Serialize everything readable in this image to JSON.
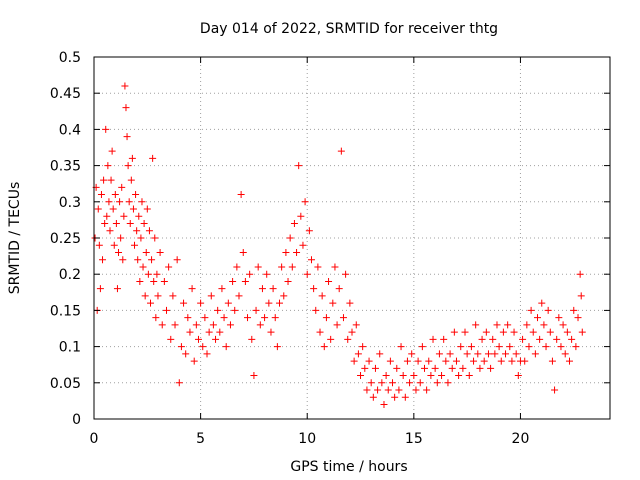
{
  "chart_data": {
    "type": "scatter",
    "title": "Day 014 of 2022, SRMTID for receiver thtg",
    "xlabel": "GPS time / hours",
    "ylabel": "SRMTID / TECUs",
    "xlim": [
      0,
      24.2
    ],
    "ylim": [
      0,
      0.5
    ],
    "x_ticks": [
      0,
      5,
      10,
      15,
      20
    ],
    "y_ticks": [
      0,
      0.05,
      0.1,
      0.15,
      0.2,
      0.25,
      0.3,
      0.35,
      0.4,
      0.45,
      0.5
    ],
    "x_tick_labels": [
      "0",
      "5",
      "10",
      "15",
      "20"
    ],
    "y_tick_labels": [
      "0",
      "0.05",
      "0.1",
      "0.15",
      "0.2",
      "0.25",
      "0.3",
      "0.35",
      "0.4",
      "0.45",
      "0.5"
    ],
    "grid": true,
    "marker": "+",
    "colors": {
      "points": "#ff0000",
      "grid": "#a0a0a0",
      "axes": "#000000"
    },
    "series": [
      {
        "points": [
          [
            0.05,
            0.25
          ],
          [
            0.1,
            0.32
          ],
          [
            0.15,
            0.15
          ],
          [
            0.2,
            0.29
          ],
          [
            0.25,
            0.24
          ],
          [
            0.3,
            0.18
          ],
          [
            0.35,
            0.31
          ],
          [
            0.4,
            0.22
          ],
          [
            0.45,
            0.33
          ],
          [
            0.5,
            0.27
          ],
          [
            0.55,
            0.4
          ],
          [
            0.6,
            0.28
          ],
          [
            0.65,
            0.35
          ],
          [
            0.7,
            0.3
          ],
          [
            0.75,
            0.26
          ],
          [
            0.8,
            0.33
          ],
          [
            0.85,
            0.37
          ],
          [
            0.9,
            0.29
          ],
          [
            0.95,
            0.24
          ],
          [
            1.0,
            0.31
          ],
          [
            1.05,
            0.27
          ],
          [
            1.1,
            0.18
          ],
          [
            1.15,
            0.23
          ],
          [
            1.2,
            0.3
          ],
          [
            1.25,
            0.25
          ],
          [
            1.3,
            0.32
          ],
          [
            1.35,
            0.22
          ],
          [
            1.4,
            0.28
          ],
          [
            1.45,
            0.46
          ],
          [
            1.5,
            0.43
          ],
          [
            1.55,
            0.39
          ],
          [
            1.6,
            0.35
          ],
          [
            1.65,
            0.3
          ],
          [
            1.7,
            0.27
          ],
          [
            1.75,
            0.33
          ],
          [
            1.8,
            0.36
          ],
          [
            1.85,
            0.29
          ],
          [
            1.9,
            0.24
          ],
          [
            1.95,
            0.31
          ],
          [
            2.0,
            0.26
          ],
          [
            2.05,
            0.22
          ],
          [
            2.1,
            0.28
          ],
          [
            2.15,
            0.19
          ],
          [
            2.2,
            0.25
          ],
          [
            2.25,
            0.3
          ],
          [
            2.3,
            0.21
          ],
          [
            2.35,
            0.27
          ],
          [
            2.4,
            0.17
          ],
          [
            2.45,
            0.23
          ],
          [
            2.5,
            0.29
          ],
          [
            2.55,
            0.2
          ],
          [
            2.6,
            0.26
          ],
          [
            2.65,
            0.16
          ],
          [
            2.7,
            0.22
          ],
          [
            2.75,
            0.36
          ],
          [
            2.8,
            0.19
          ],
          [
            2.85,
            0.25
          ],
          [
            2.9,
            0.14
          ],
          [
            2.95,
            0.2
          ],
          [
            3.0,
            0.17
          ],
          [
            3.1,
            0.23
          ],
          [
            3.2,
            0.13
          ],
          [
            3.3,
            0.19
          ],
          [
            3.4,
            0.15
          ],
          [
            3.5,
            0.21
          ],
          [
            3.6,
            0.11
          ],
          [
            3.7,
            0.17
          ],
          [
            3.8,
            0.13
          ],
          [
            3.9,
            0.22
          ],
          [
            4.0,
            0.05
          ],
          [
            4.1,
            0.1
          ],
          [
            4.2,
            0.16
          ],
          [
            4.3,
            0.09
          ],
          [
            4.4,
            0.14
          ],
          [
            4.5,
            0.12
          ],
          [
            4.6,
            0.18
          ],
          [
            4.7,
            0.08
          ],
          [
            4.8,
            0.13
          ],
          [
            4.9,
            0.11
          ],
          [
            5.0,
            0.16
          ],
          [
            5.1,
            0.1
          ],
          [
            5.2,
            0.14
          ],
          [
            5.3,
            0.09
          ],
          [
            5.4,
            0.12
          ],
          [
            5.5,
            0.17
          ],
          [
            5.6,
            0.13
          ],
          [
            5.7,
            0.11
          ],
          [
            5.8,
            0.15
          ],
          [
            5.9,
            0.12
          ],
          [
            6.0,
            0.18
          ],
          [
            6.1,
            0.14
          ],
          [
            6.2,
            0.1
          ],
          [
            6.3,
            0.16
          ],
          [
            6.4,
            0.13
          ],
          [
            6.5,
            0.19
          ],
          [
            6.6,
            0.15
          ],
          [
            6.7,
            0.21
          ],
          [
            6.8,
            0.17
          ],
          [
            6.9,
            0.31
          ],
          [
            7.0,
            0.23
          ],
          [
            7.1,
            0.19
          ],
          [
            7.2,
            0.14
          ],
          [
            7.3,
            0.2
          ],
          [
            7.4,
            0.11
          ],
          [
            7.5,
            0.06
          ],
          [
            7.6,
            0.15
          ],
          [
            7.7,
            0.21
          ],
          [
            7.8,
            0.13
          ],
          [
            7.9,
            0.18
          ],
          [
            8.0,
            0.14
          ],
          [
            8.1,
            0.2
          ],
          [
            8.2,
            0.16
          ],
          [
            8.3,
            0.12
          ],
          [
            8.4,
            0.18
          ],
          [
            8.5,
            0.14
          ],
          [
            8.6,
            0.1
          ],
          [
            8.7,
            0.16
          ],
          [
            8.8,
            0.21
          ],
          [
            8.9,
            0.17
          ],
          [
            9.0,
            0.23
          ],
          [
            9.1,
            0.19
          ],
          [
            9.2,
            0.25
          ],
          [
            9.3,
            0.21
          ],
          [
            9.4,
            0.27
          ],
          [
            9.5,
            0.23
          ],
          [
            9.6,
            0.35
          ],
          [
            9.7,
            0.28
          ],
          [
            9.8,
            0.24
          ],
          [
            9.9,
            0.3
          ],
          [
            10.0,
            0.2
          ],
          [
            10.1,
            0.26
          ],
          [
            10.2,
            0.22
          ],
          [
            10.3,
            0.18
          ],
          [
            10.4,
            0.15
          ],
          [
            10.5,
            0.21
          ],
          [
            10.6,
            0.12
          ],
          [
            10.7,
            0.17
          ],
          [
            10.8,
            0.1
          ],
          [
            10.9,
            0.14
          ],
          [
            11.0,
            0.19
          ],
          [
            11.1,
            0.11
          ],
          [
            11.2,
            0.16
          ],
          [
            11.3,
            0.21
          ],
          [
            11.4,
            0.13
          ],
          [
            11.5,
            0.18
          ],
          [
            11.6,
            0.37
          ],
          [
            11.7,
            0.14
          ],
          [
            11.8,
            0.2
          ],
          [
            11.9,
            0.11
          ],
          [
            12.0,
            0.16
          ],
          [
            12.1,
            0.12
          ],
          [
            12.2,
            0.08
          ],
          [
            12.3,
            0.13
          ],
          [
            12.4,
            0.09
          ],
          [
            12.5,
            0.06
          ],
          [
            12.6,
            0.1
          ],
          [
            12.7,
            0.07
          ],
          [
            12.8,
            0.04
          ],
          [
            12.9,
            0.08
          ],
          [
            13.0,
            0.05
          ],
          [
            13.1,
            0.03
          ],
          [
            13.2,
            0.07
          ],
          [
            13.3,
            0.04
          ],
          [
            13.4,
            0.09
          ],
          [
            13.5,
            0.05
          ],
          [
            13.6,
            0.02
          ],
          [
            13.7,
            0.06
          ],
          [
            13.8,
            0.04
          ],
          [
            13.9,
            0.08
          ],
          [
            14.0,
            0.05
          ],
          [
            14.1,
            0.03
          ],
          [
            14.2,
            0.07
          ],
          [
            14.3,
            0.04
          ],
          [
            14.4,
            0.1
          ],
          [
            14.5,
            0.06
          ],
          [
            14.6,
            0.03
          ],
          [
            14.7,
            0.08
          ],
          [
            14.8,
            0.05
          ],
          [
            14.9,
            0.09
          ],
          [
            15.0,
            0.06
          ],
          [
            15.1,
            0.04
          ],
          [
            15.2,
            0.08
          ],
          [
            15.3,
            0.05
          ],
          [
            15.4,
            0.1
          ],
          [
            15.5,
            0.07
          ],
          [
            15.6,
            0.04
          ],
          [
            15.7,
            0.08
          ],
          [
            15.8,
            0.06
          ],
          [
            15.9,
            0.11
          ],
          [
            16.0,
            0.07
          ],
          [
            16.1,
            0.05
          ],
          [
            16.2,
            0.09
          ],
          [
            16.3,
            0.06
          ],
          [
            16.4,
            0.11
          ],
          [
            16.5,
            0.08
          ],
          [
            16.6,
            0.05
          ],
          [
            16.7,
            0.09
          ],
          [
            16.8,
            0.07
          ],
          [
            16.9,
            0.12
          ],
          [
            17.0,
            0.08
          ],
          [
            17.1,
            0.06
          ],
          [
            17.2,
            0.1
          ],
          [
            17.3,
            0.07
          ],
          [
            17.4,
            0.12
          ],
          [
            17.5,
            0.09
          ],
          [
            17.6,
            0.06
          ],
          [
            17.7,
            0.1
          ],
          [
            17.8,
            0.08
          ],
          [
            17.9,
            0.13
          ],
          [
            18.0,
            0.09
          ],
          [
            18.1,
            0.07
          ],
          [
            18.2,
            0.11
          ],
          [
            18.3,
            0.08
          ],
          [
            18.4,
            0.12
          ],
          [
            18.5,
            0.09
          ],
          [
            18.6,
            0.07
          ],
          [
            18.7,
            0.11
          ],
          [
            18.8,
            0.09
          ],
          [
            18.9,
            0.13
          ],
          [
            19.0,
            0.1
          ],
          [
            19.1,
            0.08
          ],
          [
            19.2,
            0.12
          ],
          [
            19.3,
            0.09
          ],
          [
            19.4,
            0.13
          ],
          [
            19.5,
            0.1
          ],
          [
            19.6,
            0.08
          ],
          [
            19.7,
            0.12
          ],
          [
            19.8,
            0.09
          ],
          [
            19.9,
            0.06
          ],
          [
            20.0,
            0.08
          ],
          [
            20.1,
            0.11
          ],
          [
            20.2,
            0.08
          ],
          [
            20.3,
            0.13
          ],
          [
            20.4,
            0.1
          ],
          [
            20.5,
            0.15
          ],
          [
            20.6,
            0.12
          ],
          [
            20.7,
            0.09
          ],
          [
            20.8,
            0.14
          ],
          [
            20.9,
            0.11
          ],
          [
            21.0,
            0.16
          ],
          [
            21.1,
            0.13
          ],
          [
            21.2,
            0.1
          ],
          [
            21.3,
            0.15
          ],
          [
            21.4,
            0.12
          ],
          [
            21.5,
            0.08
          ],
          [
            21.6,
            0.04
          ],
          [
            21.7,
            0.11
          ],
          [
            21.8,
            0.14
          ],
          [
            21.9,
            0.1
          ],
          [
            22.0,
            0.13
          ],
          [
            22.1,
            0.09
          ],
          [
            22.2,
            0.12
          ],
          [
            22.3,
            0.08
          ],
          [
            22.4,
            0.11
          ],
          [
            22.5,
            0.15
          ],
          [
            22.6,
            0.1
          ],
          [
            22.7,
            0.14
          ],
          [
            22.8,
            0.2
          ],
          [
            22.85,
            0.17
          ],
          [
            22.9,
            0.12
          ]
        ]
      }
    ]
  }
}
